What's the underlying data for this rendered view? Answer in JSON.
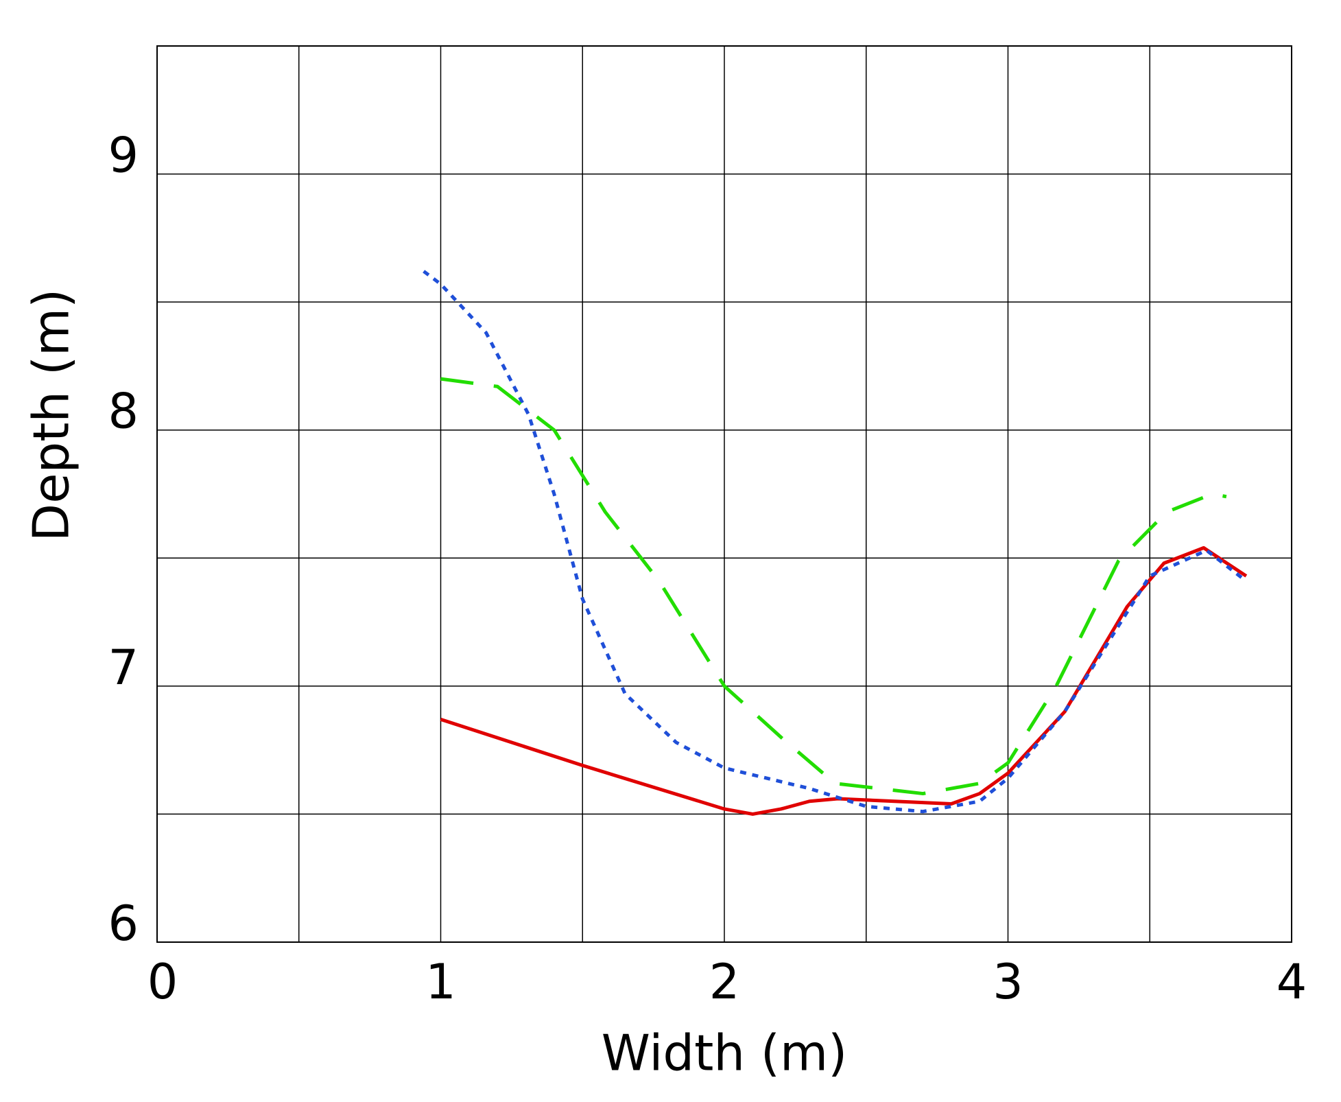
{
  "chart_data": {
    "type": "line",
    "xlabel": "Width (m)",
    "ylabel": "Depth (m)",
    "xlim": [
      0,
      4
    ],
    "ylim": [
      6,
      9.5
    ],
    "xticks": [
      0,
      1,
      2,
      3,
      4
    ],
    "yticks": [
      6,
      7,
      8,
      9
    ],
    "grid": true,
    "grid_step": 0.5,
    "series": [
      {
        "color": "#e00000",
        "dash": "solid",
        "x": [
          1,
          1.5,
          2.0,
          2.1,
          2.2,
          2.3,
          2.4,
          2.6,
          2.8,
          2.9,
          3.0,
          3.2,
          3.42,
          3.55,
          3.69,
          3.84
        ],
        "values": [
          6.87,
          6.69,
          6.52,
          6.5,
          6.52,
          6.55,
          6.56,
          6.55,
          6.54,
          6.58,
          6.66,
          6.9,
          7.31,
          7.48,
          7.54,
          7.43
        ]
      },
      {
        "color": "#1f4fd8",
        "dash": "dotted",
        "x": [
          0.94,
          1.0,
          1.16,
          1.31,
          1.4,
          1.5,
          1.65,
          1.83,
          2.0,
          2.3,
          2.5,
          2.7,
          2.9,
          3.0,
          3.2,
          3.5,
          3.7,
          3.84
        ],
        "values": [
          8.62,
          8.57,
          8.38,
          8.06,
          7.75,
          7.34,
          6.97,
          6.78,
          6.68,
          6.6,
          6.53,
          6.51,
          6.55,
          6.64,
          6.9,
          7.43,
          7.53,
          7.41
        ]
      },
      {
        "color": "#22dd00",
        "dash": "dashed",
        "x": [
          1.0,
          1.2,
          1.4,
          1.58,
          1.77,
          2.0,
          2.2,
          2.39,
          2.7,
          2.9,
          3.0,
          3.17,
          3.39,
          3.56,
          3.72,
          3.77
        ],
        "values": [
          8.2,
          8.17,
          8.0,
          7.68,
          7.41,
          7.0,
          6.8,
          6.62,
          6.58,
          6.62,
          6.7,
          7.0,
          7.49,
          7.68,
          7.75,
          7.74
        ]
      }
    ]
  }
}
